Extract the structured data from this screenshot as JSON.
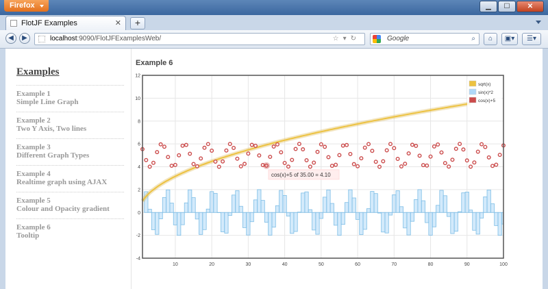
{
  "browser": {
    "app_button": "Firefox",
    "window_buttons": {
      "minimize": "▁",
      "maximize": "☐",
      "close": "✕"
    },
    "tab_title": "FlotJF Examples",
    "new_tab_label": "+",
    "url_host": "localhost",
    "url_path": ":9090/FlotJFExamplesWeb/",
    "search_placeholder": "Google",
    "icons": [
      "back-icon",
      "forward-icon",
      "site-identity-icon",
      "bookmark-star-icon",
      "reload-icon",
      "search-engine-icon",
      "magnifier-icon",
      "home-icon",
      "addons-icon",
      "menu-icon"
    ]
  },
  "sidebar": {
    "title": "Examples",
    "items": [
      {
        "num": "Example 1",
        "desc": "Simple Line Graph"
      },
      {
        "num": "Example 2",
        "desc": "Two Y Axis, Two lines"
      },
      {
        "num": "Example 3",
        "desc": "Different Graph Types"
      },
      {
        "num": "Example 4",
        "desc": "Realtime graph using AJAX"
      },
      {
        "num": "Example 5",
        "desc": "Colour and Opacity gradient"
      },
      {
        "num": "Example 6",
        "desc": "Tooltip"
      }
    ]
  },
  "main": {
    "title": "Example 6"
  },
  "chart_data": {
    "type": "line",
    "title": "",
    "xlim": [
      1,
      100
    ],
    "ylim": [
      -4,
      12
    ],
    "xticks": [
      "10",
      "20",
      "30",
      "40",
      "50",
      "60",
      "70",
      "80",
      "90",
      "100"
    ],
    "yticks": [
      "-4",
      "-2",
      "0",
      "2",
      "4",
      "6",
      "8",
      "10",
      "12"
    ],
    "legend_position": "top-right",
    "series": [
      {
        "name": "sqrt(x)",
        "kind": "line",
        "color": "#edc240",
        "x_range": [
          1,
          91
        ],
        "function": "sqrt(x)"
      },
      {
        "name": "sin(x)*2",
        "kind": "bars",
        "color": "#afd8f8",
        "x_range": [
          1,
          100
        ],
        "function": "sin(x)*2"
      },
      {
        "name": "cos(x)+5",
        "kind": "points",
        "color": "#cb4b4b",
        "x_range": [
          1,
          100
        ],
        "function": "cos(x)+5"
      }
    ],
    "tooltip": {
      "text": "cos(x)+5 of 35.00 = 4.10",
      "x": 35,
      "y": 4.1
    }
  }
}
